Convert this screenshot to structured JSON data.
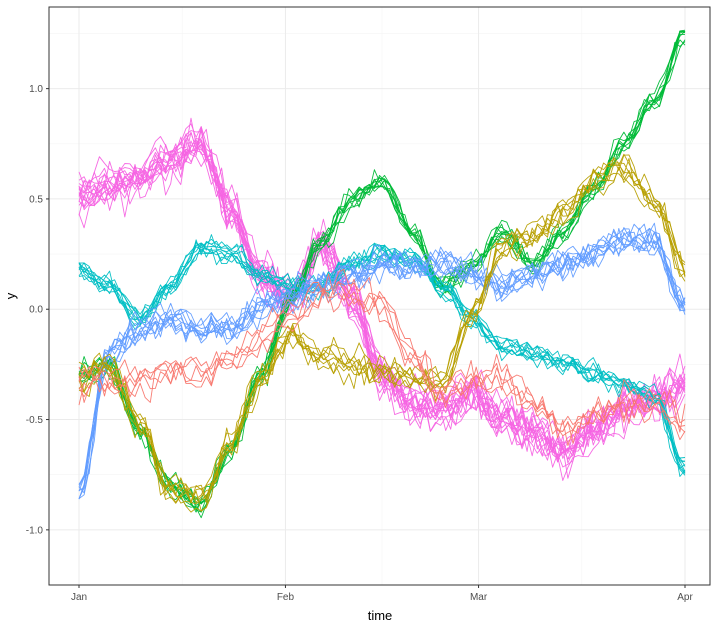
{
  "chart_data": {
    "type": "line",
    "title": "",
    "xlabel": "time",
    "ylabel": "y",
    "x_tick_labels": [
      "Jan",
      "Feb",
      "Mar",
      "Apr"
    ],
    "x_tick_dates": [
      "2000-01-01",
      "2000-02-01",
      "2000-03-01",
      "2000-04-01"
    ],
    "xlim": [
      "2000-01-01",
      "2000-04-01"
    ],
    "ylim": [
      -1.25,
      1.37
    ],
    "y_ticks": [
      -1.0,
      -0.5,
      0.0,
      0.5,
      1.0
    ],
    "y_tick_labels": [
      "-1.0",
      "-0.5",
      "0.0",
      "0.5",
      "1.0"
    ],
    "grid": true,
    "legend": "none",
    "x_dates": [
      "2000-01-01",
      "2000-01-08",
      "2000-01-15",
      "2000-01-22",
      "2000-01-29",
      "2000-02-05",
      "2000-02-12",
      "2000-02-19",
      "2000-02-26",
      "2000-03-04",
      "2000-03-11",
      "2000-03-18",
      "2000-03-25",
      "2000-03-31"
    ],
    "series_groups": [
      {
        "color": "#f564e3",
        "n_lines": 16,
        "noise": 0.08,
        "values": [
          0.52,
          0.55,
          0.6,
          0.68,
          0.75,
          0.45,
          0.15,
          0.05,
          0.3,
          0.05,
          -0.3,
          -0.42,
          -0.45,
          -0.38,
          -0.5,
          -0.55,
          -0.65,
          -0.55,
          -0.45,
          -0.4,
          -0.35
        ]
      },
      {
        "color": "#00ba38",
        "n_lines": 10,
        "noise": 0.045,
        "values": [
          -0.3,
          -0.25,
          -0.55,
          -0.8,
          -0.88,
          -0.65,
          -0.3,
          0.05,
          0.3,
          0.5,
          0.58,
          0.35,
          0.1,
          0.2,
          0.35,
          0.2,
          0.35,
          0.55,
          0.75,
          0.95,
          1.25
        ]
      },
      {
        "color": "#00bfc4",
        "n_lines": 10,
        "noise": 0.04,
        "values": [
          0.18,
          0.1,
          -0.05,
          0.1,
          0.28,
          0.25,
          0.15,
          0.1,
          0.1,
          0.2,
          0.25,
          0.22,
          0.1,
          -0.05,
          -0.18,
          -0.2,
          -0.25,
          -0.3,
          -0.35,
          -0.4,
          -0.73
        ]
      },
      {
        "color": "#619cff",
        "n_lines": 10,
        "noise": 0.06,
        "values": [
          -0.85,
          -0.2,
          -0.1,
          -0.05,
          -0.1,
          -0.1,
          0.0,
          0.05,
          0.1,
          0.15,
          0.2,
          0.18,
          0.2,
          0.15,
          0.1,
          0.15,
          0.2,
          0.25,
          0.3,
          0.3,
          0.0
        ]
      },
      {
        "color": "#b79f00",
        "n_lines": 8,
        "noise": 0.06,
        "values": [
          -0.3,
          -0.25,
          -0.5,
          -0.8,
          -0.85,
          -0.6,
          -0.3,
          -0.1,
          -0.2,
          -0.25,
          -0.28,
          -0.3,
          -0.32,
          0.0,
          0.3,
          0.35,
          0.45,
          0.6,
          0.65,
          0.5,
          0.2
        ]
      },
      {
        "color": "#f8766d",
        "n_lines": 5,
        "noise": 0.07,
        "values": [
          -0.3,
          -0.3,
          -0.3,
          -0.25,
          -0.25,
          -0.2,
          -0.1,
          0.0,
          0.1,
          0.1,
          0.05,
          -0.2,
          -0.35,
          -0.3,
          -0.28,
          -0.4,
          -0.5,
          -0.45,
          -0.4,
          -0.4,
          -0.5
        ]
      }
    ]
  }
}
